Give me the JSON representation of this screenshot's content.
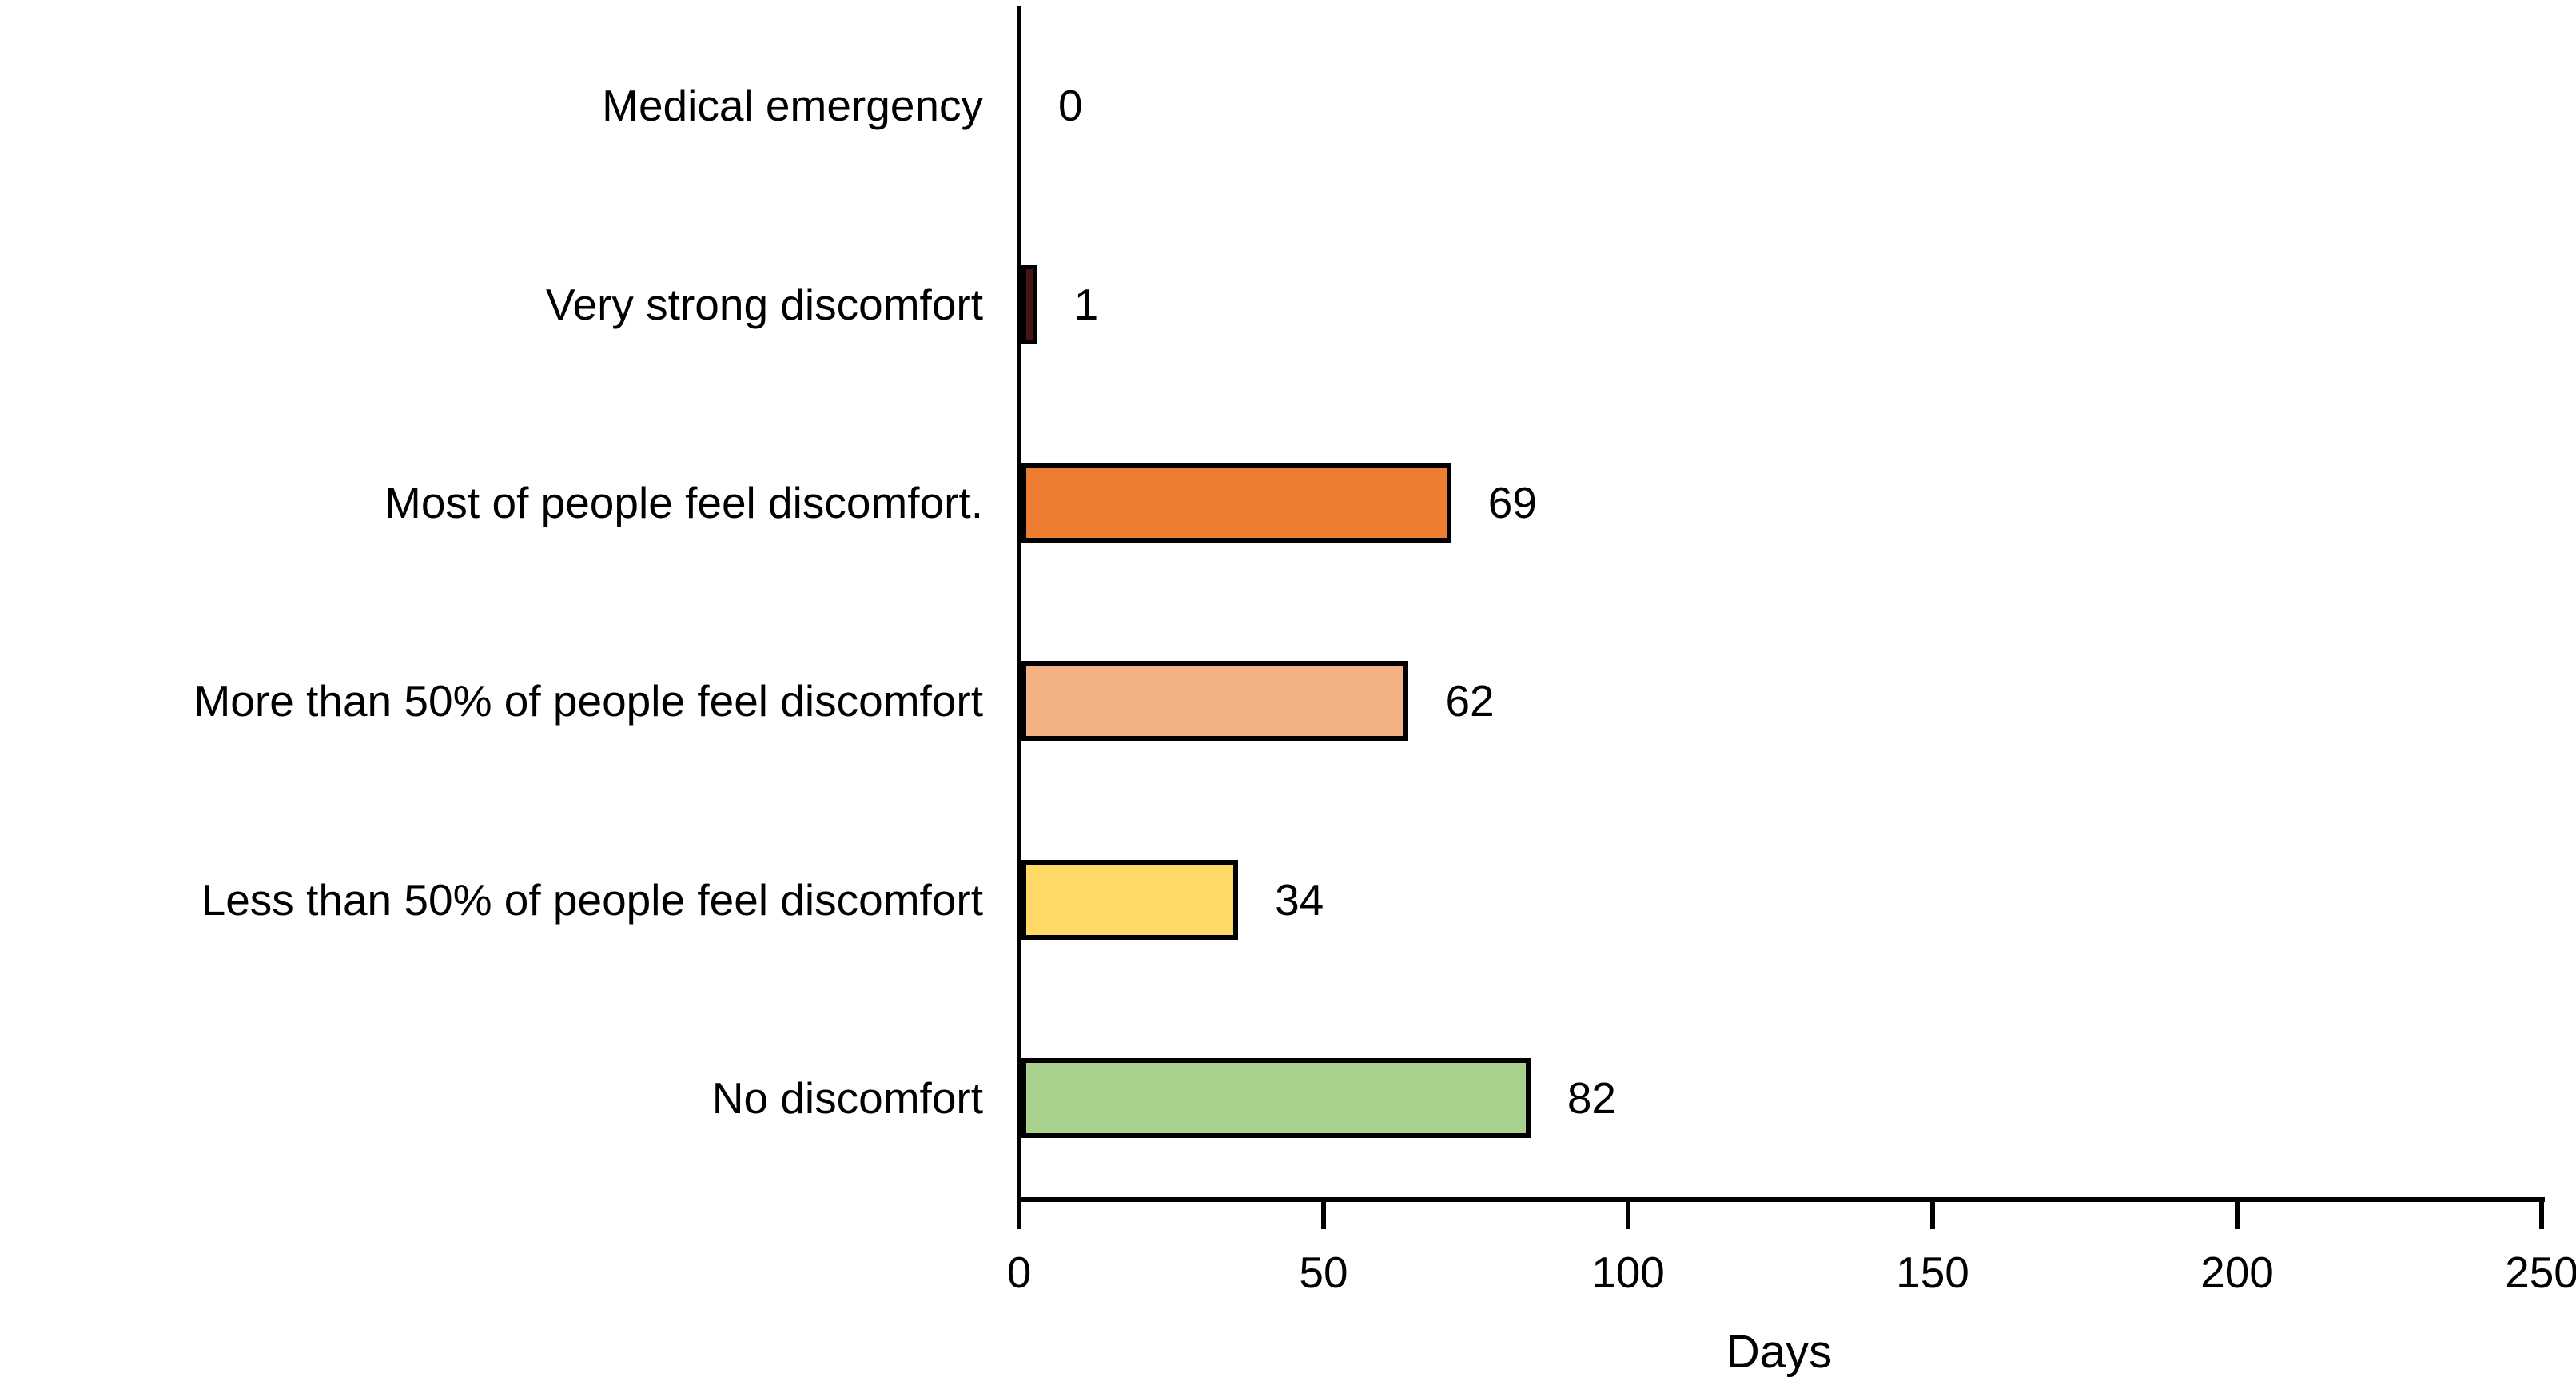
{
  "chart_data": {
    "type": "bar",
    "orientation": "horizontal",
    "title": "",
    "xlabel": "Days",
    "ylabel": "",
    "xlim": [
      0,
      250
    ],
    "x_ticks": [
      0,
      50,
      100,
      150,
      200,
      250
    ],
    "grid": false,
    "legend": false,
    "categories": [
      "Medical emergency",
      "Very strong discomfort",
      "Most of people feel discomfort.",
      "More than 50% of people feel discomfort",
      "Less than 50% of people feel discomfort",
      "No discomfort"
    ],
    "values": [
      0,
      1,
      69,
      62,
      34,
      82
    ],
    "value_labels": [
      "0",
      "1",
      "69",
      "62",
      "34",
      "82"
    ],
    "bar_colors": [
      "#491414",
      "#491414",
      "#ED7D31",
      "#F4B183",
      "#FFD966",
      "#A9D18E"
    ],
    "bar_border_color": "#000000",
    "axis_color": "#000000",
    "text_color": "#000000"
  }
}
